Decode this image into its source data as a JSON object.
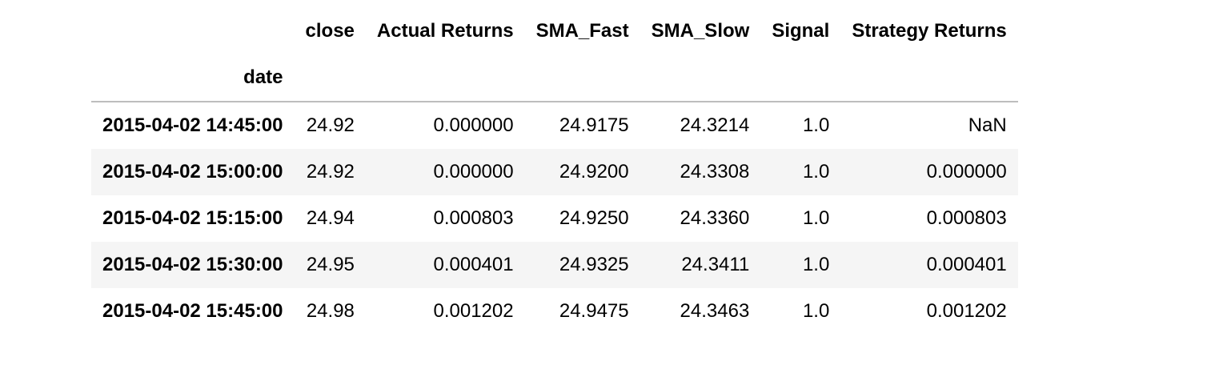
{
  "table": {
    "columns": [
      "close",
      "Actual Returns",
      "SMA_Fast",
      "SMA_Slow",
      "Signal",
      "Strategy Returns"
    ],
    "index_name": "date",
    "rows": [
      {
        "index": "2015-04-02 14:45:00",
        "cells": [
          "24.92",
          "0.000000",
          "24.9175",
          "24.3214",
          "1.0",
          "NaN"
        ]
      },
      {
        "index": "2015-04-02 15:00:00",
        "cells": [
          "24.92",
          "0.000000",
          "24.9200",
          "24.3308",
          "1.0",
          "0.000000"
        ]
      },
      {
        "index": "2015-04-02 15:15:00",
        "cells": [
          "24.94",
          "0.000803",
          "24.9250",
          "24.3360",
          "1.0",
          "0.000803"
        ]
      },
      {
        "index": "2015-04-02 15:30:00",
        "cells": [
          "24.95",
          "0.000401",
          "24.9325",
          "24.3411",
          "1.0",
          "0.000401"
        ]
      },
      {
        "index": "2015-04-02 15:45:00",
        "cells": [
          "24.98",
          "0.001202",
          "24.9475",
          "24.3463",
          "1.0",
          "0.001202"
        ]
      }
    ]
  }
}
